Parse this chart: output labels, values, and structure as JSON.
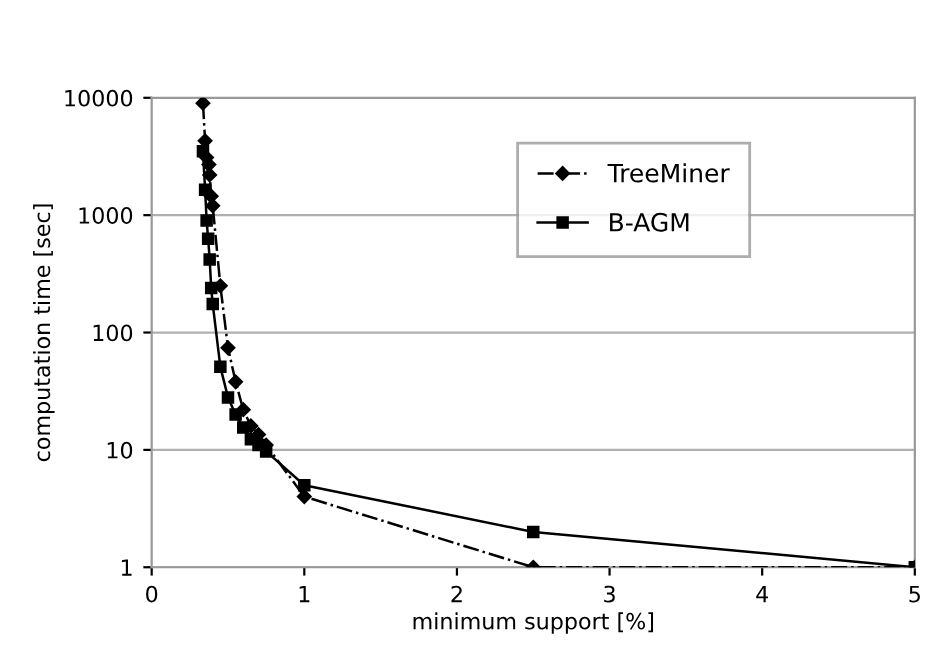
{
  "chart_data": {
    "type": "line",
    "xlabel": "minimum support [%]",
    "ylabel": "computation time [sec]",
    "log": "y",
    "xlim": [
      0,
      5
    ],
    "xticks": [
      0,
      1,
      2,
      3,
      4,
      5
    ],
    "ylim": [
      1,
      10000
    ],
    "yticks": [
      1,
      10,
      100,
      1000,
      10000
    ],
    "grid": "y",
    "legend": "top right",
    "series": [
      {
        "name": "TreeMiner",
        "color": "#000000",
        "marker": "diamond",
        "line_style": "dashed",
        "x": [
          0.336,
          0.35,
          0.36,
          0.375,
          0.38,
          0.39,
          0.4,
          0.45,
          0.5,
          0.55,
          0.6,
          0.65,
          0.7,
          0.75,
          1.0,
          2.5,
          5
        ],
        "values": [
          9000,
          4300,
          3100,
          2700,
          2200,
          1450,
          1200,
          250,
          74,
          38,
          22,
          16,
          13.5,
          11,
          4,
          1,
          1
        ]
      },
      {
        "name": "B-AGM",
        "color": "#000000",
        "marker": "square",
        "line_style": "solid",
        "x": [
          0.336,
          0.35,
          0.36,
          0.37,
          0.38,
          0.39,
          0.4,
          0.45,
          0.5,
          0.55,
          0.6,
          0.65,
          0.7,
          0.75,
          1.0,
          2.5,
          5
        ],
        "values": [
          3500,
          1650,
          900,
          630,
          420,
          240,
          175,
          51,
          28,
          20,
          15.5,
          12.3,
          11,
          9.7,
          5,
          2,
          1
        ]
      }
    ]
  }
}
